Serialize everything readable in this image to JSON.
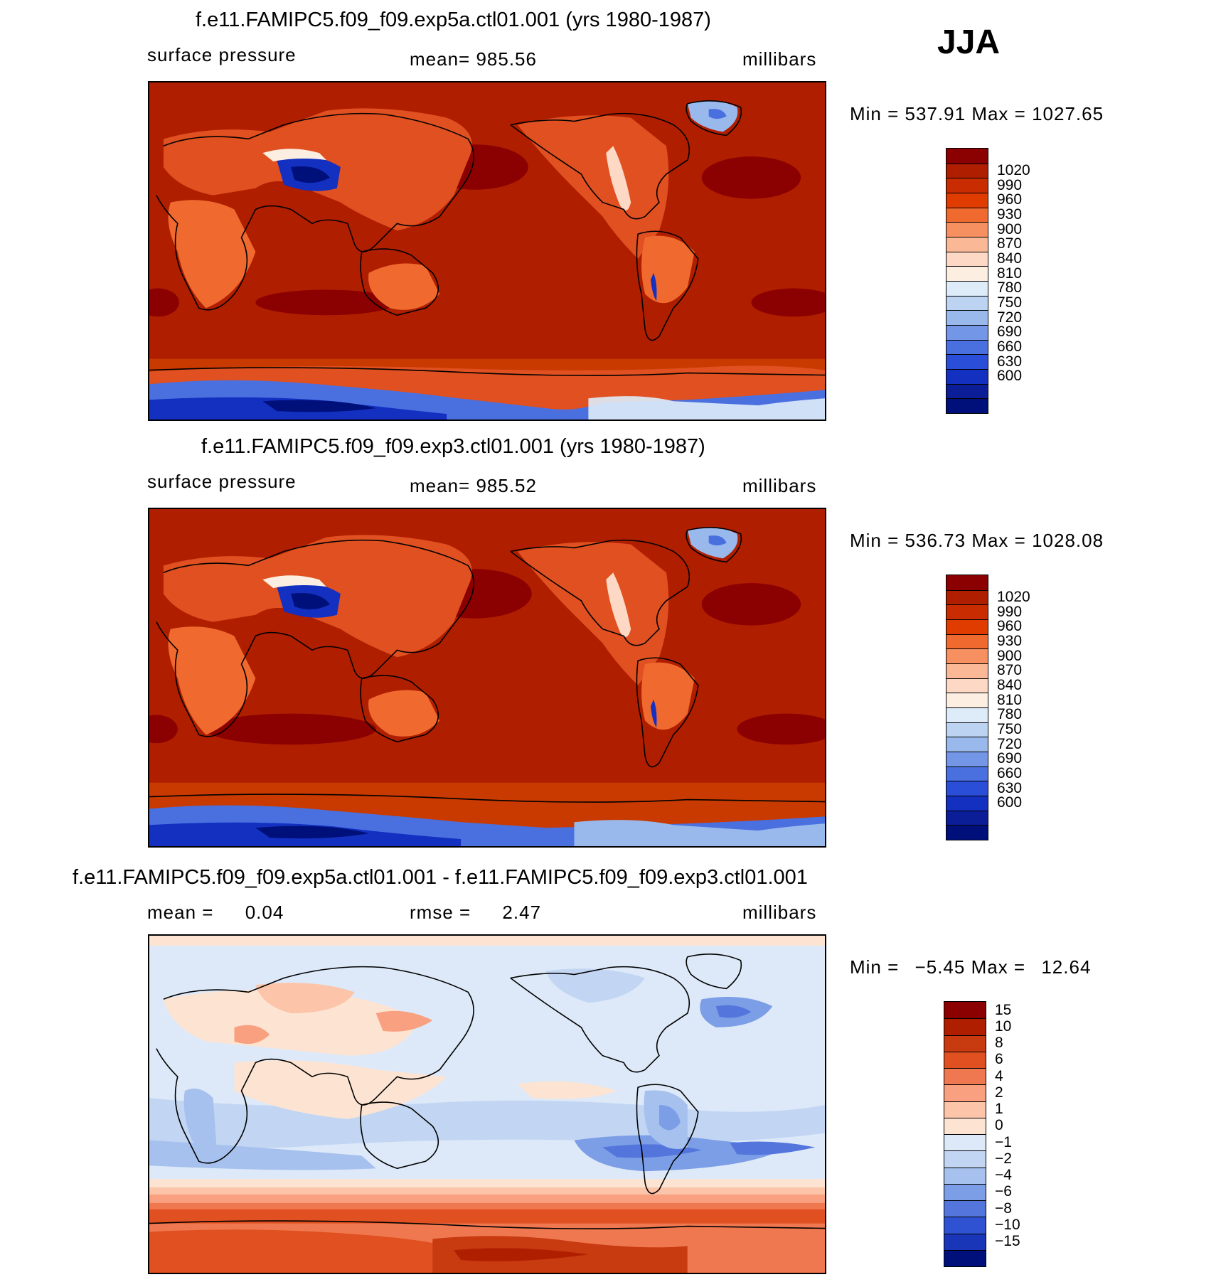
{
  "season": "JJA",
  "panels": [
    {
      "title": "f.e11.FAMIPC5.f09_f09.exp5a.ctl01.001 (yrs 1980-1987)",
      "left_label": "surface pressure",
      "center_label": "mean= 985.56",
      "right_label": "millibars",
      "min_label": "Min =",
      "min_value": "537.91",
      "max_label": "Max =",
      "max_value": "1027.65",
      "colorbar_labels": [
        "1020",
        "990",
        "960",
        "930",
        "900",
        "870",
        "840",
        "810",
        "780",
        "750",
        "720",
        "690",
        "660",
        "630",
        "600"
      ]
    },
    {
      "title": "f.e11.FAMIPC5.f09_f09.exp3.ctl01.001 (yrs 1980-1987)",
      "left_label": "surface pressure",
      "center_label": "mean= 985.52",
      "right_label": "millibars",
      "min_label": "Min =",
      "min_value": "536.73",
      "max_label": "Max =",
      "max_value": "1028.08",
      "colorbar_labels": [
        "1020",
        "990",
        "960",
        "930",
        "900",
        "870",
        "840",
        "810",
        "780",
        "750",
        "720",
        "690",
        "660",
        "630",
        "600"
      ]
    },
    {
      "title": "f.e11.FAMIPC5.f09_f09.exp5a.ctl01.001 - f.e11.FAMIPC5.f09_f09.exp3.ctl01.001",
      "left_label": "mean =",
      "left_value": "0.04",
      "center_label": "rmse =",
      "center_value": "2.47",
      "right_label": "millibars",
      "min_label": "Min =",
      "min_value": "−5.45",
      "max_label": "Max =",
      "max_value": "12.64",
      "colorbar_labels": [
        "15",
        "10",
        "8",
        "6",
        "4",
        "2",
        "1",
        "0",
        "−1",
        "−2",
        "−4",
        "−6",
        "−8",
        "−10",
        "−15"
      ]
    }
  ],
  "colors": {
    "abs_scale": [
      "#8b0000",
      "#b01e00",
      "#c82c00",
      "#e03c00",
      "#f06a30",
      "#f79060",
      "#fbb896",
      "#fdd8c4",
      "#fdeee2",
      "#deecfa",
      "#bcd4f2",
      "#99b9ec",
      "#7396e6",
      "#4a70e0",
      "#2a4ed8",
      "#1330c0",
      "#0b1e98",
      "#00107a"
    ],
    "diff_scale": [
      "#8b0000",
      "#b01e00",
      "#c83a10",
      "#e05020",
      "#f07850",
      "#f8a080",
      "#fcc4a8",
      "#fde4d2",
      "#dde9f8",
      "#c2d6f4",
      "#a6c1ee",
      "#7c9ee6",
      "#5476dc",
      "#2f52d2",
      "#1a36b8",
      "#00107a"
    ],
    "coastline": "#000000"
  }
}
